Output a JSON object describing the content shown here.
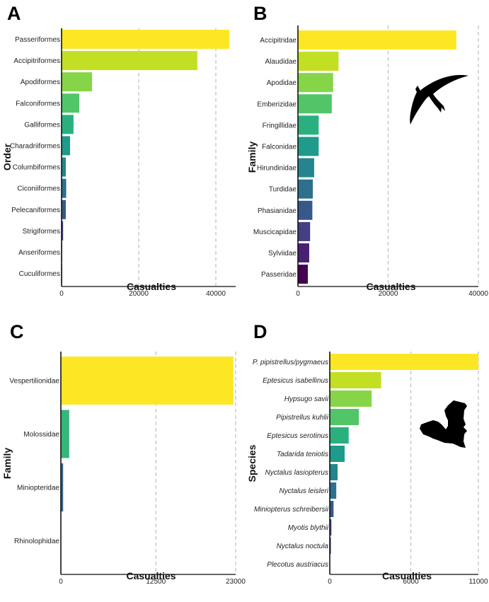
{
  "chart_data": [
    {
      "id": "A",
      "panel_label": "A",
      "type": "bar",
      "orientation": "horizontal",
      "title": "",
      "xlabel": "Casualties",
      "ylabel": "Order",
      "xlim": [
        0,
        45000
      ],
      "xticks": [
        0,
        20000,
        40000
      ],
      "xtick_labels": [
        "0",
        "20000",
        "40000"
      ],
      "grid": "vertical dashed",
      "italic_labels": false,
      "categories": [
        "Passeriformes",
        "Accipitriformes",
        "Apodiformes",
        "Falconiformes",
        "Galliformes",
        "Charadriiformes",
        "Columbiformes",
        "Ciconiiformes",
        "Pelecaniformes",
        "Strigiformes",
        "Anseriformes",
        "Cuculiformes"
      ],
      "values": [
        43500,
        35200,
        7900,
        4600,
        3100,
        2200,
        1100,
        1200,
        1100,
        400,
        150,
        150
      ],
      "colors": [
        "#FDE725",
        "#C2DF23",
        "#86D549",
        "#52C569",
        "#2AB07F",
        "#1E9B8A",
        "#25858E",
        "#2D708E",
        "#38588C",
        "#433E85",
        "#482173",
        "#440154"
      ]
    },
    {
      "id": "B",
      "panel_label": "B",
      "type": "bar",
      "orientation": "horizontal",
      "title": "",
      "xlabel": "Casualties",
      "ylabel": "Family",
      "xlim": [
        0,
        40000
      ],
      "xticks": [
        0,
        20000,
        40000
      ],
      "xtick_labels": [
        "0",
        "20000",
        "40000"
      ],
      "grid": "vertical dashed",
      "italic_labels": false,
      "silhouette": "swift-icon",
      "categories": [
        "Accipitridae",
        "Alaudidae",
        "Apodidae",
        "Emberizidae",
        "Fringillidae",
        "Falconidae",
        "Hirundinidae",
        "Turdidae",
        "Phasianidae",
        "Muscicapidae",
        "Sylviidae",
        "Passeridae"
      ],
      "values": [
        35100,
        9000,
        7800,
        7500,
        4600,
        4600,
        3600,
        3300,
        3200,
        2700,
        2500,
        2200
      ],
      "colors": [
        "#FDE725",
        "#C2DF23",
        "#86D549",
        "#52C569",
        "#2AB07F",
        "#1E9B8A",
        "#25858E",
        "#2D708E",
        "#38588C",
        "#433E85",
        "#482173",
        "#440154"
      ]
    },
    {
      "id": "C",
      "panel_label": "C",
      "type": "bar",
      "orientation": "horizontal",
      "title": "",
      "xlabel": "Casualties",
      "ylabel": "Family",
      "xlim": [
        0,
        23000
      ],
      "xticks": [
        0,
        12500,
        23000
      ],
      "xtick_labels": [
        "0",
        "12500",
        "23000"
      ],
      "grid": "vertical dashed",
      "italic_labels": false,
      "categories": [
        "Vespertilionidae",
        "Molossidae",
        "Miniopteridae",
        "Rhinolophidae"
      ],
      "values": [
        22700,
        1100,
        300,
        0
      ],
      "colors": [
        "#FDE725",
        "#35B779",
        "#31688E",
        "#440154"
      ]
    },
    {
      "id": "D",
      "panel_label": "D",
      "type": "bar",
      "orientation": "horizontal",
      "title": "",
      "xlabel": "Casualties",
      "ylabel": "Species",
      "xlim": [
        0,
        11000
      ],
      "xticks": [
        0,
        6000,
        11000
      ],
      "xtick_labels": [
        "0",
        "6000",
        "11000"
      ],
      "grid": "vertical dashed",
      "italic_labels": true,
      "silhouette": "bat-icon",
      "categories": [
        "P. pipistrellus/pygmaeus",
        "Eptesicus isabellinus",
        "Hypsugo savii",
        "Pipistrellus kuhlii",
        "Eptesicus serotinus",
        "Tadarida teniotis",
        "Nyctalus lasiopterus",
        "Nyctalus leisleri",
        "Miniopterus schreibersii",
        "Myotis blythii",
        "Nyctalus noctula",
        "Plecotus austriacus"
      ],
      "values": [
        11000,
        3800,
        3100,
        2150,
        1400,
        1100,
        580,
        480,
        280,
        120,
        80,
        0
      ],
      "colors": [
        "#FDE725",
        "#C2DF23",
        "#86D549",
        "#52C569",
        "#2AB07F",
        "#1E9B8A",
        "#25858E",
        "#2D708E",
        "#38588C",
        "#433E85",
        "#482173",
        "#440154"
      ]
    }
  ]
}
